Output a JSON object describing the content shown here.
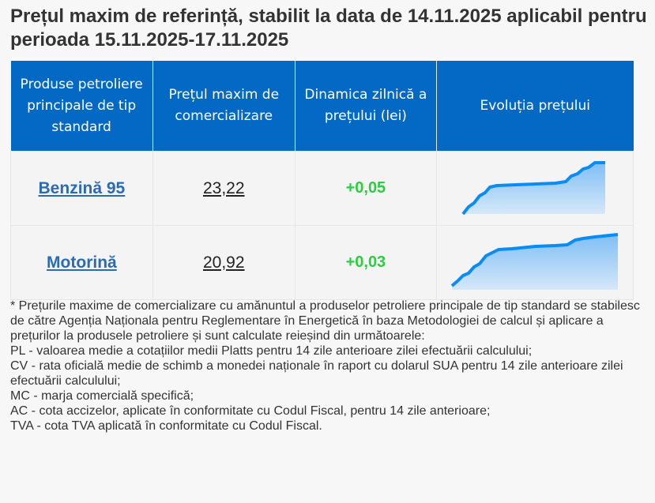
{
  "title": "Prețul maxim de referință, stabilit la data de 14.11.2025 aplicabil pentru perioada 15.11.2025-17.11.2025",
  "table": {
    "headers": [
      "Produse petroliere principale de tip standard",
      "Prețul maxim de comercializare",
      "Dinamica zilnică a prețului (lei)",
      "Evoluția prețului"
    ],
    "rows": [
      {
        "product": "Benzină 95",
        "price": "23,22",
        "dynamic": "+0,05",
        "sparkline": "rising-trend"
      },
      {
        "product": "Motorină",
        "price": "20,92",
        "dynamic": "+0,03",
        "sparkline": "rising-trend"
      }
    ]
  },
  "colors": {
    "header_bg": "#0369c4",
    "link": "#2a6bb3",
    "positive": "#2ecc40",
    "spark_line": "#0a8cf5"
  },
  "notes": [
    "* Prețurile maxime de comercializare cu amănuntul a produselor petroliere principale de tip standard se stabilesc de către Agenția Naționala pentru Reglementare în Energetică în baza Metodologiei de calcul și aplicare a prețurilor la produsele petroliere și sunt calculate reieșind din următoarele:",
    "PL - valoarea medie a cotațiilor medii Platts pentru 14 zile anterioare zilei efectuării calculului;",
    "CV - rata oficială medie de schimb a monedei naționale în raport cu dolarul SUA pentru 14 zile anterioare zilei efectuării calculului;",
    "MC - marja comercială specifică;",
    "AC - cota accizelor, aplicate în conformitate cu Codul Fiscal, pentru 14 zile anterioare;",
    "TVA - cota TVA aplicată în conformitate cu Codul Fiscal."
  ]
}
